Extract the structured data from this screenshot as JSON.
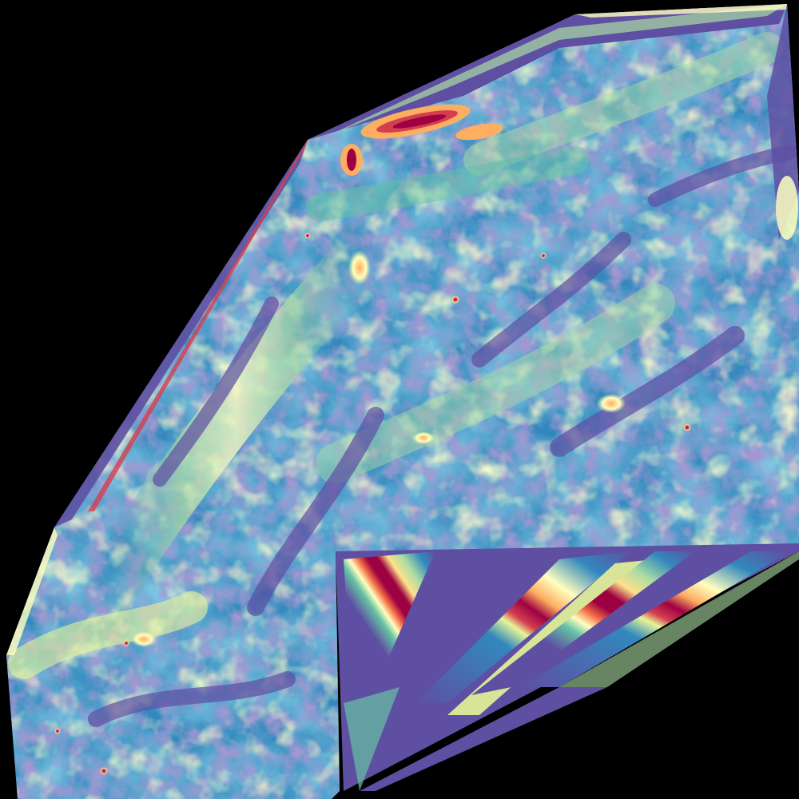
{
  "map": {
    "background": "#000000",
    "colormap": "spectral",
    "palette": {
      "deep_purple": "#5e4fa2",
      "blue": "#3288bd",
      "teal": "#66c2a5",
      "light_green": "#abdda4",
      "pale_yellow": "#e6f598",
      "cream": "#ffffbf",
      "peach": "#fee08b",
      "orange": "#fdae61",
      "red_orange": "#f46d43",
      "red": "#d53e4f",
      "dark_red": "#9e0142"
    }
  }
}
